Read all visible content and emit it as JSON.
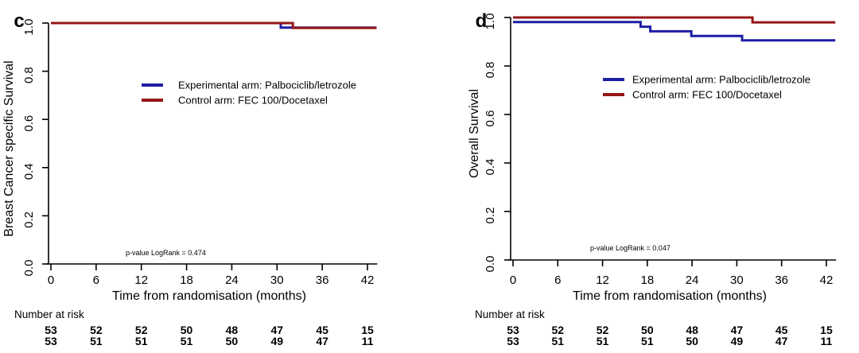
{
  "colors": {
    "experimental": "#1e1ea5",
    "control": "#961616",
    "axis": "#000000"
  },
  "chart_data": [
    {
      "panel_label": "c",
      "type": "line",
      "subtype": "kaplan-meier-step",
      "ylabel": "Breast Cancer specific Survival",
      "xlabel": "Time from randomisation (months)",
      "xlim": [
        0,
        42
      ],
      "ylim": [
        0.0,
        1.0
      ],
      "grid": false,
      "x_ticks": [
        "0",
        "6",
        "12",
        "18",
        "24",
        "30",
        "36",
        "42"
      ],
      "x_tick_months": [
        0,
        6,
        12,
        18,
        24,
        30,
        36,
        42
      ],
      "y_ticks": [
        "0.0",
        "0.2",
        "0.4",
        "0.6",
        "0.8",
        "1.0"
      ],
      "y_tick_values": [
        0,
        0.2,
        0.4,
        0.6,
        0.8,
        1
      ],
      "legend_position": "center-left-inside",
      "pvalue": "p-value LogRank = 0.474",
      "legend": [
        {
          "label": "Experimental arm: Palbociclib/letrozole",
          "color": "experimental"
        },
        {
          "label": "Control arm: FEC 100/Docetaxel",
          "color": "control"
        }
      ],
      "series": [
        {
          "name": "Experimental arm: Palbociclib/letrozole",
          "color": "experimental",
          "steps": [
            [
              0,
              1.0
            ],
            [
              30.5,
              0.981
            ]
          ],
          "end_month": 43.2
        },
        {
          "name": "Control arm: FEC 100/Docetaxel",
          "color": "control",
          "steps": [
            [
              0,
              1.0
            ],
            [
              32.1,
              0.98
            ]
          ],
          "end_month": 43.2
        }
      ],
      "at_risk": {
        "title": "Number at risk",
        "rows": [
          {
            "arm": "experimental",
            "values": [
              "53",
              "52",
              "52",
              "50",
              "48",
              "47",
              "45",
              "15"
            ]
          },
          {
            "arm": "control",
            "values": [
              "53",
              "51",
              "51",
              "51",
              "50",
              "49",
              "47",
              "11"
            ]
          }
        ]
      }
    },
    {
      "panel_label": "d",
      "type": "line",
      "subtype": "kaplan-meier-step",
      "ylabel": "Overall Survival",
      "xlabel": "Time from randomisation (months)",
      "xlim": [
        0,
        42
      ],
      "ylim": [
        0.0,
        1.0
      ],
      "grid": false,
      "x_ticks": [
        "0",
        "6",
        "12",
        "18",
        "24",
        "30",
        "36",
        "42"
      ],
      "x_tick_months": [
        0,
        6,
        12,
        18,
        24,
        30,
        36,
        42
      ],
      "y_ticks": [
        "0.0",
        "0.2",
        "0.4",
        "0.6",
        "0.8",
        "1.0"
      ],
      "y_tick_values": [
        0,
        0.2,
        0.4,
        0.6,
        0.8,
        1
      ],
      "legend_position": "center-left-inside",
      "pvalue": "p-value LogRank = 0.047",
      "legend": [
        {
          "label": "Experimental arm: Palbociclib/letrozole",
          "color": "experimental"
        },
        {
          "label": "Control arm: FEC 100/Docetaxel",
          "color": "control"
        }
      ],
      "series": [
        {
          "name": "Experimental arm: Palbociclib/letrozole",
          "color": "experimental",
          "steps": [
            [
              0,
              0.981
            ],
            [
              17.1,
              0.962
            ],
            [
              18.4,
              0.943
            ],
            [
              23.9,
              0.924
            ],
            [
              30.7,
              0.906
            ]
          ],
          "end_month": 43.2
        },
        {
          "name": "Control arm: FEC 100/Docetaxel",
          "color": "control",
          "steps": [
            [
              0,
              1.0
            ],
            [
              32.1,
              0.98
            ]
          ],
          "end_month": 43.2
        }
      ],
      "at_risk": {
        "title": "Number at risk",
        "rows": [
          {
            "arm": "experimental",
            "values": [
              "53",
              "52",
              "52",
              "50",
              "48",
              "47",
              "45",
              "15"
            ]
          },
          {
            "arm": "control",
            "values": [
              "53",
              "51",
              "51",
              "51",
              "50",
              "49",
              "47",
              "11"
            ]
          }
        ]
      }
    }
  ]
}
